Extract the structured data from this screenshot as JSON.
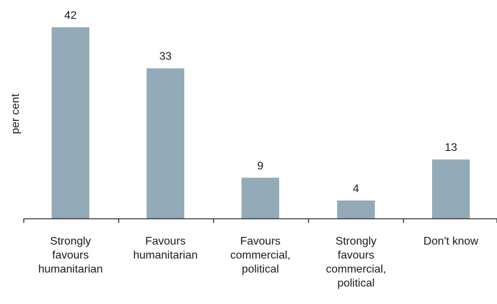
{
  "chart_data": {
    "type": "bar",
    "ylabel": "per cent",
    "categories": [
      [
        "Strongly",
        "favours",
        "humanitarian"
      ],
      [
        "Favours",
        "humanitarian"
      ],
      [
        "Favours",
        "commercial,",
        "political"
      ],
      [
        "Strongly",
        "favours",
        "commercial,",
        "political"
      ],
      [
        "Don't know"
      ]
    ],
    "values": [
      42,
      33,
      9,
      4,
      13
    ],
    "value_labels": [
      "42",
      "33",
      "9",
      "4",
      "13"
    ],
    "ylim": [
      0,
      42
    ],
    "grid": false,
    "bar_color": "#93abb9",
    "axis_color": "#222222"
  }
}
